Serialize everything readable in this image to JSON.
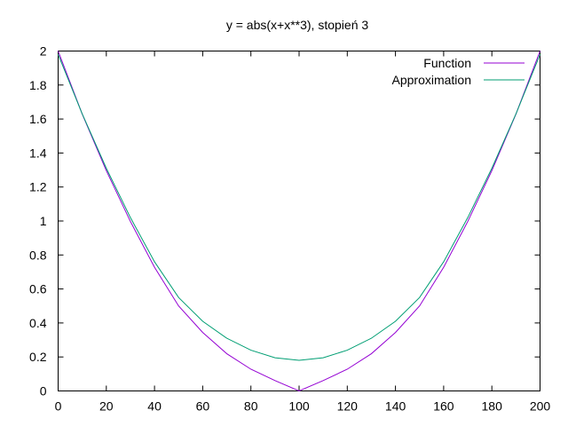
{
  "chart_data": {
    "type": "line",
    "title": "y = abs(x+x**3), stopień 3",
    "xlabel": "",
    "ylabel": "",
    "xlim": [
      0,
      200
    ],
    "ylim": [
      0,
      2
    ],
    "xticks": [
      0,
      20,
      40,
      60,
      80,
      100,
      120,
      140,
      160,
      180,
      200
    ],
    "yticks": [
      0,
      0.2,
      0.4,
      0.6,
      0.8,
      1,
      1.2,
      1.4,
      1.6,
      1.8,
      2
    ],
    "ytick_labels": [
      "0",
      "0.2",
      "0.4",
      "0.6",
      "0.8",
      "1",
      "1.2",
      "1.4",
      "1.6",
      "1.8",
      "2"
    ],
    "grid": false,
    "legend_position": "top-right",
    "series": [
      {
        "name": "Function",
        "color": "#9400d3",
        "x": [
          0,
          10,
          20,
          30,
          40,
          50,
          60,
          70,
          80,
          90,
          100,
          110,
          120,
          130,
          140,
          150,
          160,
          170,
          180,
          190,
          200
        ],
        "y": [
          2.0,
          1.629,
          1.296,
          0.997,
          0.728,
          0.5,
          0.344,
          0.219,
          0.128,
          0.061,
          0.0,
          0.061,
          0.128,
          0.219,
          0.344,
          0.5,
          0.728,
          0.997,
          1.296,
          1.629,
          2.0
        ]
      },
      {
        "name": "Approximation",
        "color": "#009e73",
        "x": [
          0,
          10,
          20,
          30,
          40,
          50,
          60,
          70,
          80,
          90,
          100,
          110,
          120,
          130,
          140,
          150,
          160,
          170,
          180,
          190,
          200
        ],
        "y": [
          1.98,
          1.63,
          1.31,
          1.02,
          0.76,
          0.55,
          0.41,
          0.31,
          0.24,
          0.195,
          0.18,
          0.195,
          0.24,
          0.31,
          0.41,
          0.55,
          0.76,
          1.02,
          1.31,
          1.63,
          1.98
        ]
      }
    ]
  }
}
